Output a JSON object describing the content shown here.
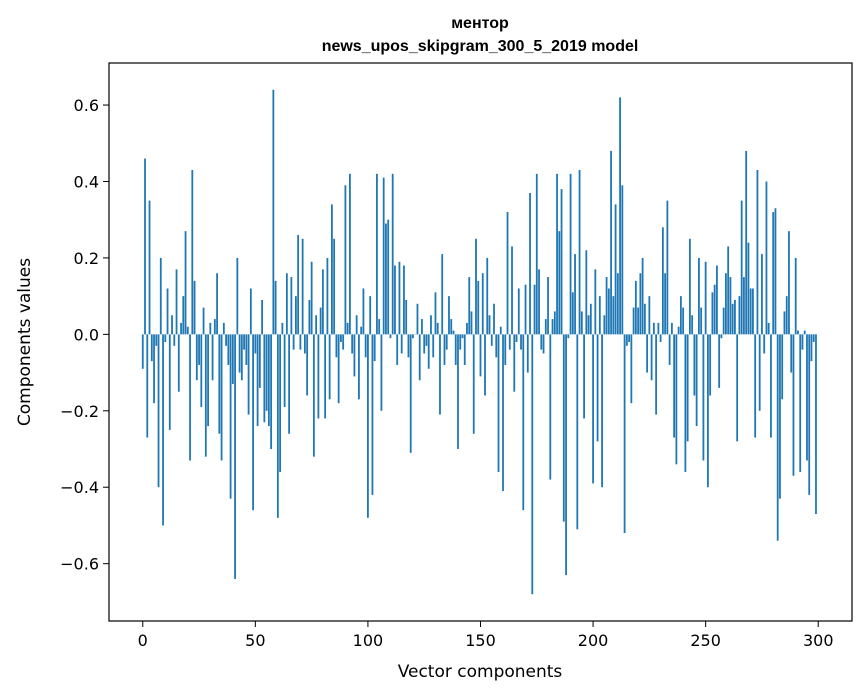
{
  "chart_data": {
    "type": "bar",
    "title_line1": "ментор",
    "title_line2": "news_upos_skipgram_300_5_2019 model",
    "xlabel": "Vector components",
    "ylabel": "Components values",
    "xlim": [
      -15,
      315
    ],
    "ylim": [
      -0.75,
      0.71
    ],
    "x_ticks": [
      0,
      50,
      100,
      150,
      200,
      250,
      300
    ],
    "x_tick_labels": [
      "0",
      "50",
      "100",
      "150",
      "200",
      "250",
      "300"
    ],
    "y_ticks": [
      -0.6,
      -0.4,
      -0.2,
      0.0,
      0.2,
      0.4,
      0.6
    ],
    "y_tick_labels": [
      "−0.6",
      "−0.4",
      "−0.2",
      "0.0",
      "0.2",
      "0.4",
      "0.6"
    ],
    "bar_color": "#1f77b4",
    "series": [
      {
        "name": "values",
        "values": [
          -0.09,
          0.46,
          -0.27,
          0.35,
          -0.07,
          -0.18,
          -0.03,
          -0.4,
          0.2,
          -0.5,
          -0.02,
          0.12,
          -0.25,
          0.05,
          -0.03,
          0.17,
          -0.15,
          0.03,
          0.1,
          0.27,
          0.02,
          -0.33,
          0.43,
          0.14,
          -0.12,
          -0.08,
          -0.19,
          0.07,
          -0.32,
          -0.24,
          0.03,
          -0.12,
          0.04,
          0.16,
          -0.26,
          -0.33,
          0.03,
          -0.03,
          -0.08,
          -0.43,
          -0.13,
          -0.64,
          0.2,
          -0.1,
          -0.12,
          -0.04,
          -0.08,
          -0.21,
          0.12,
          -0.46,
          -0.05,
          -0.24,
          -0.14,
          0.09,
          -0.23,
          -0.2,
          -0.24,
          -0.3,
          0.64,
          0.14,
          -0.48,
          -0.36,
          0.03,
          -0.19,
          0.16,
          -0.26,
          0.15,
          -0.04,
          0.1,
          0.26,
          -0.04,
          0.25,
          -0.05,
          -0.16,
          0.09,
          0.19,
          -0.32,
          0.05,
          -0.22,
          0.07,
          0.17,
          -0.22,
          0.2,
          -0.17,
          0.34,
          0.25,
          -0.06,
          -0.18,
          -0.02,
          -0.04,
          0.39,
          0.03,
          0.42,
          -0.05,
          -0.11,
          0.05,
          -0.17,
          0.02,
          0.12,
          -0.06,
          -0.48,
          0.1,
          -0.42,
          -0.07,
          0.42,
          0.04,
          -0.2,
          0.41,
          0.29,
          0.3,
          -0.01,
          0.42,
          0.18,
          -0.08,
          0.19,
          -0.05,
          0.18,
          0.09,
          -0.06,
          -0.31,
          -0.01,
          0.0,
          0.08,
          -0.12,
          0.04,
          -0.05,
          -0.03,
          -0.09,
          0.05,
          -0.06,
          0.11,
          0.03,
          -0.21,
          0.21,
          -0.08,
          -0.04,
          0.1,
          0.04,
          0.01,
          -0.08,
          -0.3,
          -0.04,
          -0.01,
          -0.08,
          0.03,
          0.15,
          0.06,
          -0.26,
          0.25,
          0.14,
          -0.11,
          0.16,
          -0.16,
          0.2,
          0.05,
          -0.03,
          0.08,
          -0.06,
          -0.36,
          0.02,
          -0.41,
          -0.08,
          0.32,
          -0.04,
          0.23,
          -0.15,
          -0.02,
          0.12,
          -0.04,
          -0.46,
          0.13,
          -0.1,
          0.37,
          -0.68,
          0.13,
          0.42,
          0.17,
          -0.04,
          -0.05,
          0.04,
          0.15,
          -0.38,
          0.04,
          0.06,
          0.42,
          0.27,
          0.38,
          -0.49,
          -0.63,
          -0.01,
          0.42,
          0.11,
          0.21,
          -0.51,
          0.43,
          0.06,
          -0.22,
          0.22,
          0.05,
          0.08,
          -0.39,
          0.17,
          -0.28,
          0.1,
          -0.4,
          0.05,
          0.15,
          0.12,
          0.48,
          0.1,
          0.34,
          0.16,
          0.62,
          0.39,
          -0.52,
          -0.03,
          -0.02,
          -0.18,
          0.07,
          0.14,
          0.07,
          0.16,
          0.2,
          0.08,
          -0.1,
          0.1,
          -0.12,
          0.03,
          -0.21,
          0.03,
          -0.02,
          0.28,
          0.16,
          0.35,
          -0.08,
          0.03,
          -0.27,
          -0.34,
          0.02,
          0.1,
          0.07,
          -0.36,
          -0.28,
          0.25,
          0.05,
          -0.16,
          -0.24,
          0.2,
          0.07,
          -0.33,
          0.19,
          -0.4,
          -0.16,
          0.11,
          0.13,
          0.18,
          -0.14,
          -0.01,
          0.07,
          0.16,
          0.23,
          0.15,
          0.08,
          0.09,
          -0.28,
          0.1,
          0.35,
          0.15,
          0.48,
          0.24,
          0.12,
          0.12,
          -0.27,
          0.43,
          -0.2,
          0.21,
          -0.05,
          0.4,
          0.03,
          -0.27,
          0.32,
          0.33,
          -0.54,
          -0.43,
          -0.17,
          0.06,
          0.1,
          0.27,
          -0.1,
          -0.37,
          0.2,
          0.01,
          -0.36,
          -0.04,
          0.01,
          -0.33,
          -0.42,
          -0.07,
          -0.02,
          -0.47
        ]
      }
    ]
  }
}
